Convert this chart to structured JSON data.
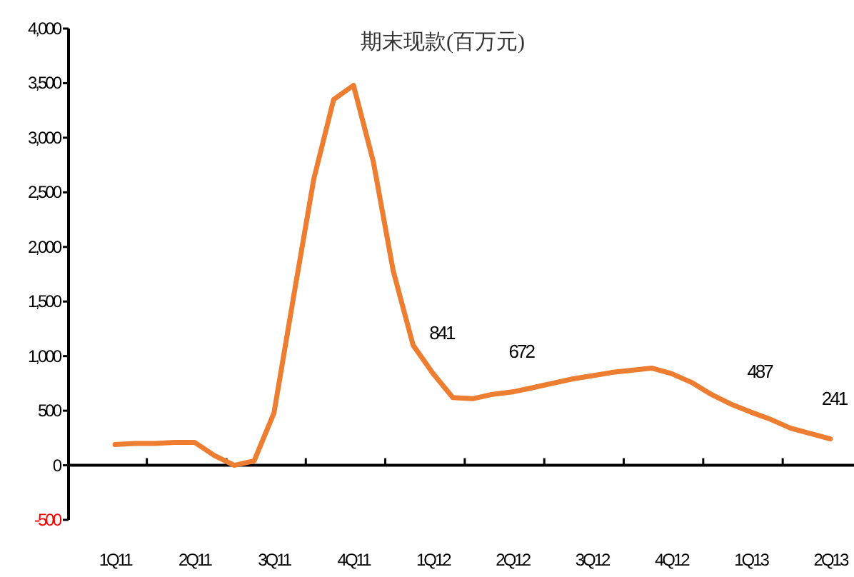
{
  "chart_data": {
    "type": "line",
    "title": "期末现款(百万元)",
    "color": "#ed7d31",
    "marker": "none",
    "line_style": "solid",
    "categories": [
      "1Q11",
      null,
      null,
      null,
      "2Q11",
      null,
      null,
      null,
      "3Q11",
      null,
      null,
      null,
      "4Q11",
      null,
      null,
      null,
      "1Q12",
      null,
      null,
      null,
      "2Q12",
      null,
      null,
      null,
      "3Q12",
      null,
      null,
      null,
      "4Q12",
      null,
      null,
      null,
      "1Q13",
      null,
      null,
      null,
      "2Q13"
    ],
    "values": [
      190,
      200,
      200,
      210,
      210,
      90,
      0,
      40,
      480,
      1560,
      2620,
      3350,
      3480,
      2780,
      1780,
      1100,
      841,
      620,
      610,
      650,
      672,
      710,
      750,
      790,
      820,
      850,
      870,
      890,
      840,
      760,
      650,
      560,
      487,
      420,
      340,
      290,
      241
    ],
    "ylim": [
      -500,
      4000
    ],
    "yticks": [
      {
        "value": -500,
        "label": "-500"
      },
      0,
      {
        "value": 500,
        "label": "500"
      },
      {
        "value": 1000,
        "label": "1,000"
      },
      {
        "value": 1500,
        "label": "1,500"
      },
      {
        "value": 2000,
        "label": "2,000"
      },
      {
        "value": 2500,
        "label": "2,500"
      },
      {
        "value": 3000,
        "label": "3,000"
      },
      {
        "value": 3500,
        "label": "3,500"
      },
      {
        "value": 4000,
        "label": "4,000"
      }
    ],
    "annotations": [
      {
        "text": "841",
        "x": "1Q12",
        "y": 841
      },
      {
        "text": "672",
        "x": "2Q12",
        "y": 672
      },
      {
        "text": "487",
        "x": "1Q13",
        "y": 487
      },
      {
        "text": "241",
        "x": "2Q13",
        "y": 241
      }
    ]
  }
}
